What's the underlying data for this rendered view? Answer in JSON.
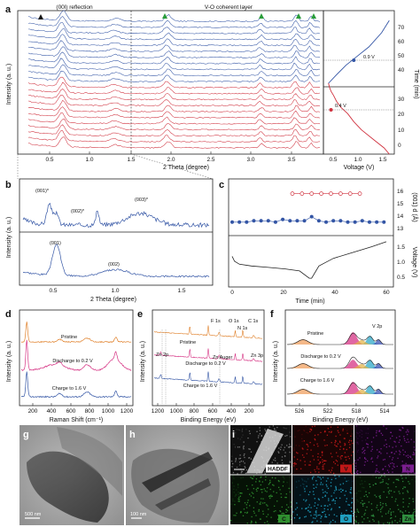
{
  "panels": {
    "a": {
      "letter": "a",
      "header_left": "(00l)  reflection",
      "header_right": "V-O coherent layer",
      "ylabel": "Intensity (a. u.)",
      "xlabel": "2 Theta (degree)",
      "xticks": [
        "0.5",
        "1.0",
        "1.5",
        "2.0",
        "2.5",
        "3.0",
        "3.5"
      ],
      "time_label": "Time (min)",
      "time_ticks_upper": [
        "70",
        "60",
        "50",
        "40"
      ],
      "time_ticks_lower": [
        "30",
        "20",
        "10",
        "0"
      ],
      "voltage_label": "Voltage (V)",
      "voltage_ticks": [
        "0.5",
        "1.0",
        "1.5"
      ],
      "marker_upper": "0.9 V",
      "marker_lower": "0.4 V"
    },
    "b": {
      "letter": "b",
      "ylabel": "Intensity (a. u.)",
      "xlabel": "2 Theta (degree)",
      "xticks": [
        "0.5",
        "1.0",
        "1.5"
      ],
      "top_labels": [
        "(001)*",
        "(002)*",
        "(003)*"
      ],
      "bottom_labels": [
        "(001)",
        "(002)"
      ]
    },
    "c": {
      "letter": "c",
      "y1_label": "(001) d (Å)",
      "y1_ticks": [
        "16",
        "15",
        "14",
        "13"
      ],
      "y2_label": "Voltage (V)",
      "y2_ticks": [
        "1.5",
        "1.0",
        "0.5"
      ],
      "xlabel": "Time (min)",
      "xticks": [
        "0",
        "20",
        "40",
        "60"
      ]
    },
    "d": {
      "letter": "d",
      "ylabel": "Intensity (a. u.)",
      "xlabel": "Raman Shift (cm⁻¹)",
      "xticks": [
        "200",
        "400",
        "600",
        "800",
        "1000",
        "1200"
      ],
      "curves": [
        "Pristine",
        "Discharge to 0.2 V",
        "Charge to 1.6 V"
      ]
    },
    "e": {
      "letter": "e",
      "ylabel": "Intensity (a. u.)",
      "xlabel": "Binding Energy (eV)",
      "xticks": [
        "1200",
        "1000",
        "800",
        "600",
        "400",
        "200"
      ],
      "peaks": [
        "F 1s",
        "O 1s",
        "C 1s",
        "N 1s",
        "Zn 2p",
        "Zn Auger",
        "Zn 3p"
      ],
      "curves": [
        "Pristine",
        "Discharge to 0.2 V",
        "Charge to 1.6 V"
      ]
    },
    "f": {
      "letter": "f",
      "ylabel": "Intensity (a. u.)",
      "xlabel": "Binding Energy (eV)",
      "xticks": [
        "526",
        "522",
        "518",
        "514"
      ],
      "peak": "V 2p",
      "curves": [
        "Pristine",
        "Discharge to 0.2 V",
        "Charge to 1.6 V"
      ]
    },
    "g": {
      "letter": "g",
      "scale": "500 nm"
    },
    "h": {
      "letter": "h",
      "scale": "100 nm"
    },
    "i": {
      "letter": "i",
      "tiles": [
        "HADDF",
        "V",
        "N",
        "C",
        "O",
        "Zn"
      ],
      "scale": "1μm"
    }
  },
  "colors": {
    "blue": "#3355a5",
    "red": "#d0323f",
    "dark": "#1a1a1a",
    "green_arrow": "#2a9d3a",
    "pink": "#d63384",
    "orange": "#e0802a",
    "cyan": "#2fa8c8"
  },
  "chart_data": [
    {
      "type": "line",
      "panel": "a-right",
      "xlabel": "Voltage (V)",
      "ylabel": "Time (min)",
      "x": [
        1.6,
        1.5,
        1.3,
        1.05,
        0.9,
        0.78,
        0.65,
        0.56,
        0.5,
        0.45,
        0.42,
        0.4,
        0.55,
        0.75,
        0.95,
        1.2,
        1.45,
        1.6
      ],
      "y": [
        0,
        3,
        7,
        12,
        16,
        20,
        23,
        26,
        29,
        31,
        33,
        35,
        39,
        44,
        48,
        53,
        60,
        66
      ],
      "markers": [
        {
          "voltage": 0.9,
          "label": "0.9 V"
        },
        {
          "voltage": 0.4,
          "label": "0.4 V"
        }
      ]
    },
    {
      "type": "scatter",
      "panel": "c-top",
      "xlabel": "Time (min)",
      "ylabel": "(001) d (Å)",
      "ylim": [
        13,
        16
      ],
      "series": [
        {
          "x": [
            25,
            29,
            33,
            37,
            41,
            45,
            49,
            53
          ],
          "values": [
            15.7,
            15.7,
            15.7,
            15.7,
            15.7,
            15.7,
            15.7,
            15.7
          ]
        },
        {
          "x": [
            0,
            3,
            6,
            9,
            12,
            15,
            18,
            21,
            24,
            27,
            30,
            33,
            36,
            39,
            42,
            45,
            48,
            51,
            54,
            57,
            60,
            63
          ],
          "values": [
            13.6,
            13.6,
            13.6,
            13.7,
            13.7,
            13.7,
            13.6,
            13.8,
            13.7,
            13.7,
            13.7,
            14.0,
            13.7,
            13.6,
            13.7,
            13.7,
            13.6,
            13.6,
            13.7,
            13.6,
            13.6,
            13.6
          ]
        }
      ]
    },
    {
      "type": "line",
      "panel": "c-bottom",
      "xlabel": "Time (min)",
      "ylabel": "Voltage (V)",
      "ylim": [
        0,
        1.7
      ],
      "x": [
        0,
        1,
        3,
        8,
        15,
        22,
        28,
        32,
        33,
        36,
        42,
        50,
        58,
        64
      ],
      "y": [
        1.05,
        0.88,
        0.78,
        0.72,
        0.67,
        0.62,
        0.55,
        0.3,
        0.3,
        0.72,
        0.98,
        1.18,
        1.38,
        1.55
      ]
    }
  ]
}
